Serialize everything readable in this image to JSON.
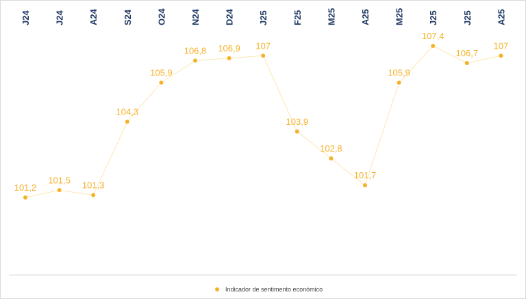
{
  "chart_data": {
    "type": "line",
    "categories": [
      "J24",
      "J24",
      "A24",
      "S24",
      "O24",
      "N24",
      "D24",
      "J25",
      "F25",
      "M25",
      "A25",
      "M25",
      "J25",
      "J25",
      "A25"
    ],
    "series": [
      {
        "name": "Indicador de sentimento económico",
        "values": [
          101.2,
          101.5,
          101.3,
          104.3,
          105.9,
          106.8,
          106.9,
          107.0,
          103.9,
          102.8,
          101.7,
          105.9,
          107.4,
          106.7,
          107.0
        ],
        "labels": [
          "101,2",
          "101,5",
          "101,3",
          "104,3",
          "105,9",
          "106,8",
          "106,9",
          "107",
          "103,9",
          "102,8",
          "101,7",
          "105,9",
          "107,4",
          "106,7",
          "107"
        ]
      }
    ],
    "ylim": [
      101.2,
      107.4
    ],
    "grid": false,
    "legend_position": "bottom",
    "x_axis_position": "top",
    "colors": {
      "line": "#fde7b0",
      "marker": "#f5b229",
      "data_label": "#f5b229",
      "tick_label": "#1f3864",
      "axis": "#d9d9d9"
    }
  }
}
